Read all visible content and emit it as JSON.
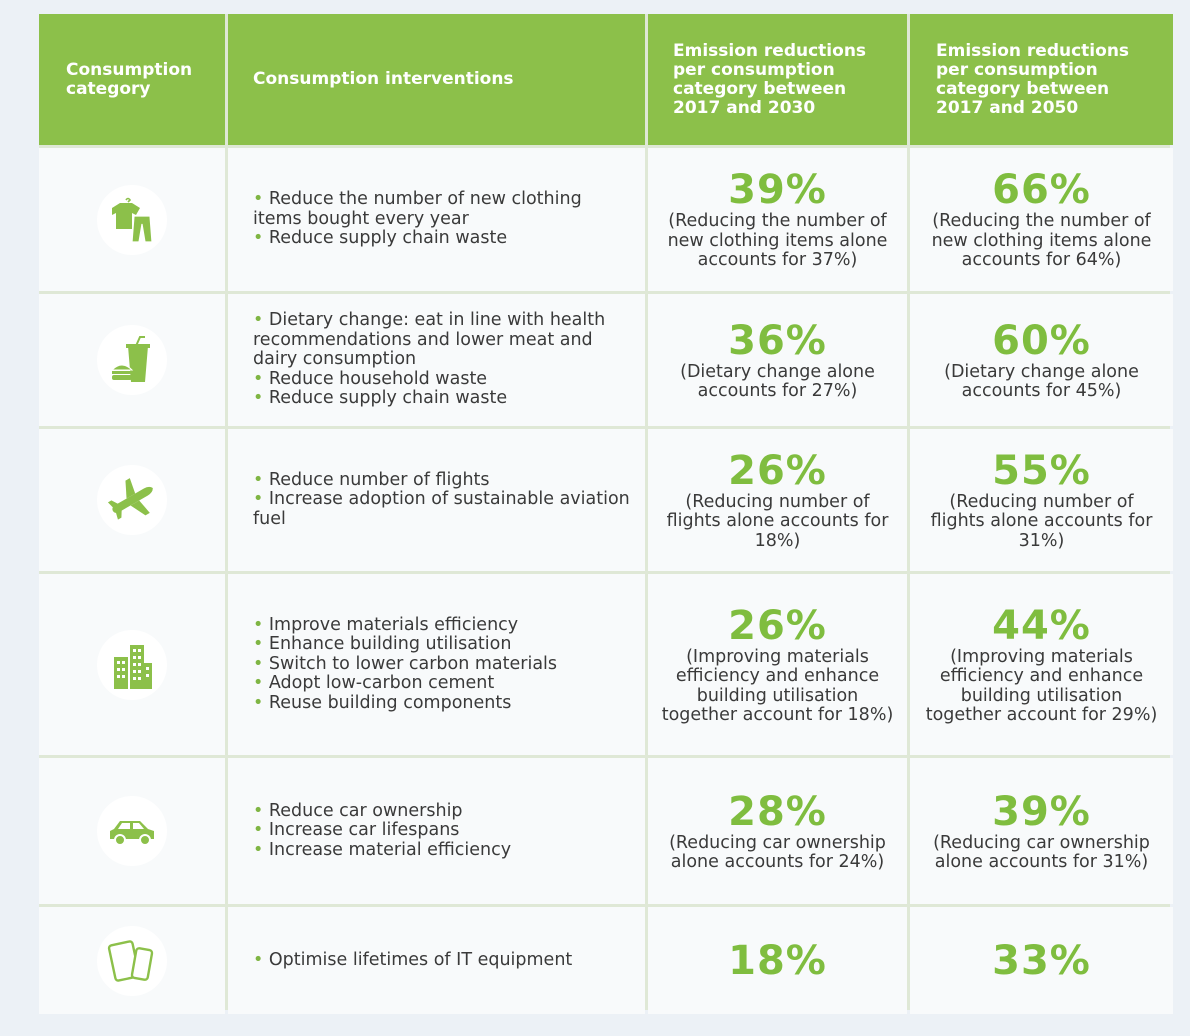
{
  "header": {
    "col1": "Consumption category",
    "col2": "Consumption interventions",
    "col3": "Emission reductions per consumption category between 2017 and 2030",
    "col4": "Emission reductions per consumption category between 2017 and 2050"
  },
  "colors": {
    "header_green": "#8cc04a",
    "accent_green": "#7fbd3f",
    "icon_green": "#8cc04a"
  },
  "rows": [
    {
      "icon": "clothing-icon",
      "interventions": [
        "Reduce the number of new clothing items bought every year",
        "Reduce supply chain waste"
      ],
      "pct2030": "39%",
      "note2030": "(Reducing the number of new clothing items alone accounts for 37%)",
      "pct2050": "66%",
      "note2050": "(Reducing the number of new clothing items alone accounts for 64%)"
    },
    {
      "icon": "food-icon",
      "interventions": [
        "Dietary change: eat in line with health recommendations and lower meat and dairy consumption",
        "Reduce household waste",
        "Reduce supply chain waste"
      ],
      "pct2030": "36%",
      "note2030": "(Dietary change alone accounts for 27%)",
      "pct2050": "60%",
      "note2050": "(Dietary change alone accounts for 45%)"
    },
    {
      "icon": "airplane-icon",
      "interventions": [
        "Reduce number of flights",
        "Increase adoption of sustainable aviation fuel"
      ],
      "pct2030": "26%",
      "note2030": "(Reducing number of flights alone accounts for 18%)",
      "pct2050": "55%",
      "note2050": "(Reducing number of flights alone accounts for 31%)"
    },
    {
      "icon": "buildings-icon",
      "interventions": [
        "Improve materials efficiency",
        "Enhance building utilisation",
        "Switch to lower carbon materials",
        "Adopt low-carbon cement",
        "Reuse building components"
      ],
      "pct2030": "26%",
      "note2030": "(Improving materials efficiency and enhance building utilisation together account for 18%)",
      "pct2050": "44%",
      "note2050": "(Improving materials efficiency and enhance building utilisation together account for 29%)"
    },
    {
      "icon": "car-icon",
      "interventions": [
        "Reduce car ownership",
        "Increase car lifespans",
        "Increase material efficiency"
      ],
      "pct2030": "28%",
      "note2030": "(Reducing car ownership alone accounts for 24%)",
      "pct2050": "39%",
      "note2050": "(Reducing car ownership alone accounts for 31%)"
    },
    {
      "icon": "devices-icon",
      "interventions": [
        "Optimise lifetimes of IT equipment"
      ],
      "pct2030": "18%",
      "note2030": "",
      "pct2050": "33%",
      "note2050": ""
    }
  ]
}
